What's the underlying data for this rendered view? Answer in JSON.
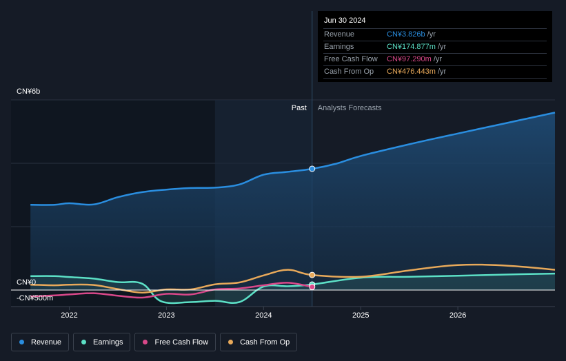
{
  "colors": {
    "revenue": "#2a8ee0",
    "earnings": "#5ce0c6",
    "fcf": "#d9488a",
    "cfo": "#e8a95a",
    "past_region": "#0f1620",
    "forecast_fill": "#1c3550",
    "background": "#151b26",
    "axis": "#ffffff",
    "grid": "#2a3140",
    "text_muted": "#9aa3ad"
  },
  "tooltip": {
    "date": "Jun 30 2024",
    "rows": [
      {
        "label": "Revenue",
        "value": "CN¥3.826b",
        "unit": "/yr",
        "color": "#2a8ee0"
      },
      {
        "label": "Earnings",
        "value": "CN¥174.877m",
        "unit": "/yr",
        "color": "#5ce0c6"
      },
      {
        "label": "Free Cash Flow",
        "value": "CN¥97.290m",
        "unit": "/yr",
        "color": "#d9488a"
      },
      {
        "label": "Cash From Op",
        "value": "CN¥476.443m",
        "unit": "/yr",
        "color": "#e8a95a"
      }
    ]
  },
  "legend": [
    {
      "label": "Revenue",
      "key": "revenue",
      "color": "#2a8ee0"
    },
    {
      "label": "Earnings",
      "key": "earnings",
      "color": "#5ce0c6"
    },
    {
      "label": "Free Cash Flow",
      "key": "fcf",
      "color": "#d9488a"
    },
    {
      "label": "Cash From Op",
      "key": "cfo",
      "color": "#e8a95a"
    }
  ],
  "chart_data": {
    "type": "area",
    "title": "",
    "xlabel": "",
    "ylabel": "",
    "x_range": [
      2021.4,
      2027.0
    ],
    "ylim": [
      -500,
      6000
    ],
    "y_ticks": [
      {
        "value": 6000,
        "label": "CN¥6b"
      },
      {
        "value": 0,
        "label": "CN¥0"
      },
      {
        "value": -500,
        "label": "-CN¥500m"
      }
    ],
    "x_ticks": [
      {
        "value": 2022,
        "label": "2022"
      },
      {
        "value": 2023,
        "label": "2023"
      },
      {
        "value": 2024,
        "label": "2024"
      },
      {
        "value": 2025,
        "label": "2025"
      },
      {
        "value": 2026,
        "label": "2026"
      }
    ],
    "grid_values": [
      0,
      2000,
      4000,
      6000
    ],
    "past_start": 2023.5,
    "divider": 2024.5,
    "past_label": "Past",
    "forecast_label": "Analysts Forecasts",
    "series": [
      {
        "name": "Revenue",
        "key": "revenue",
        "filled": true,
        "points": [
          [
            2021.6,
            2690
          ],
          [
            2021.85,
            2690
          ],
          [
            2022.0,
            2740
          ],
          [
            2022.25,
            2700
          ],
          [
            2022.5,
            2930
          ],
          [
            2022.75,
            3090
          ],
          [
            2023.0,
            3170
          ],
          [
            2023.25,
            3220
          ],
          [
            2023.5,
            3230
          ],
          [
            2023.75,
            3330
          ],
          [
            2024.0,
            3640
          ],
          [
            2024.25,
            3730
          ],
          [
            2024.5,
            3826
          ],
          [
            2024.75,
            3990
          ],
          [
            2025.0,
            4230
          ],
          [
            2025.5,
            4600
          ],
          [
            2026.0,
            4940
          ],
          [
            2026.5,
            5270
          ],
          [
            2027.0,
            5600
          ]
        ]
      },
      {
        "name": "Earnings",
        "key": "earnings",
        "filled": true,
        "points": [
          [
            2021.6,
            440
          ],
          [
            2021.85,
            440
          ],
          [
            2022.0,
            410
          ],
          [
            2022.25,
            360
          ],
          [
            2022.5,
            250
          ],
          [
            2022.75,
            200
          ],
          [
            2022.95,
            -360
          ],
          [
            2023.25,
            -380
          ],
          [
            2023.5,
            -340
          ],
          [
            2023.75,
            -380
          ],
          [
            2024.0,
            110
          ],
          [
            2024.25,
            120
          ],
          [
            2024.5,
            175
          ],
          [
            2025.0,
            390
          ],
          [
            2025.5,
            420
          ],
          [
            2026.0,
            450
          ],
          [
            2026.5,
            490
          ],
          [
            2027.0,
            520
          ]
        ]
      },
      {
        "name": "Free Cash Flow",
        "key": "fcf",
        "filled": false,
        "points": [
          [
            2021.6,
            -200
          ],
          [
            2021.85,
            -170
          ],
          [
            2022.0,
            -140
          ],
          [
            2022.25,
            -100
          ],
          [
            2022.5,
            -180
          ],
          [
            2022.75,
            -240
          ],
          [
            2023.0,
            -120
          ],
          [
            2023.25,
            -140
          ],
          [
            2023.5,
            20
          ],
          [
            2023.75,
            50
          ],
          [
            2024.0,
            150
          ],
          [
            2024.25,
            230
          ],
          [
            2024.5,
            97
          ]
        ]
      },
      {
        "name": "Cash From Op",
        "key": "cfo",
        "filled": false,
        "points": [
          [
            2021.6,
            170
          ],
          [
            2021.85,
            150
          ],
          [
            2022.0,
            170
          ],
          [
            2022.25,
            160
          ],
          [
            2022.5,
            30
          ],
          [
            2022.75,
            -80
          ],
          [
            2023.0,
            20
          ],
          [
            2023.25,
            20
          ],
          [
            2023.5,
            180
          ],
          [
            2023.75,
            240
          ],
          [
            2024.0,
            460
          ],
          [
            2024.25,
            640
          ],
          [
            2024.5,
            476
          ],
          [
            2025.0,
            420
          ],
          [
            2025.5,
            620
          ],
          [
            2026.0,
            790
          ],
          [
            2026.5,
            770
          ],
          [
            2027.0,
            640
          ]
        ]
      }
    ]
  }
}
